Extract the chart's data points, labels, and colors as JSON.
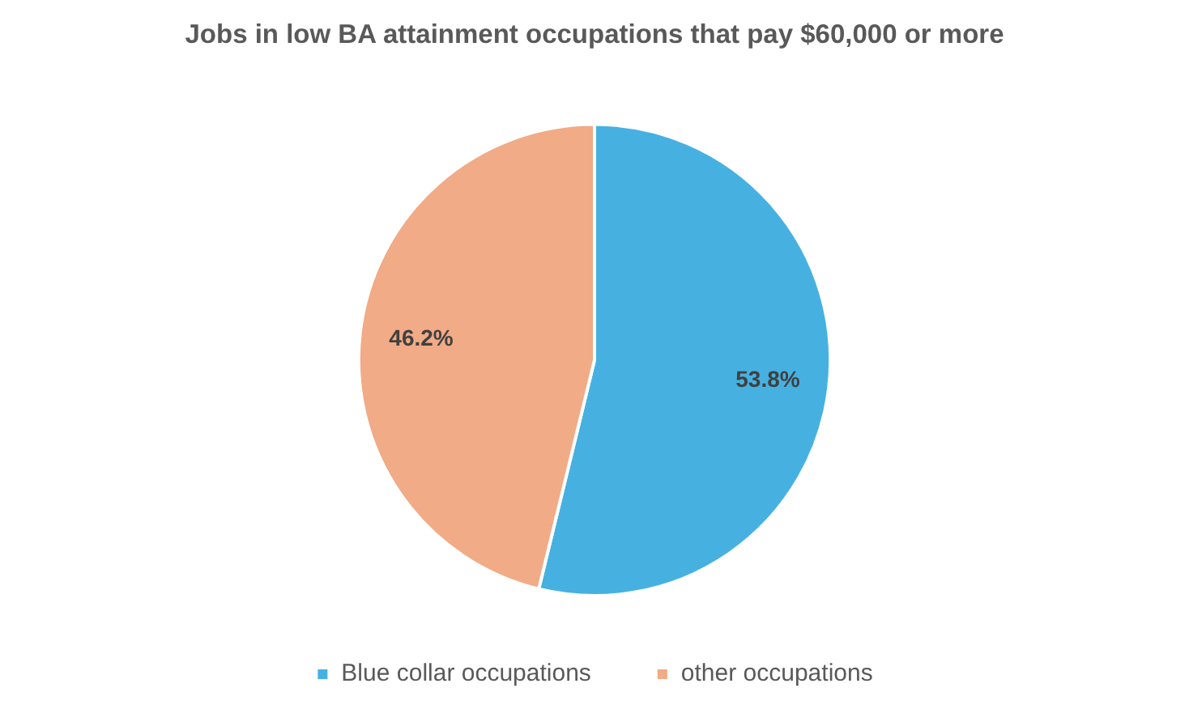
{
  "chart_data": {
    "type": "pie",
    "title": "Jobs in low BA attainment occupations that pay $60,000 or more",
    "categories": [
      "Blue collar occupations",
      "other occupations"
    ],
    "values": [
      53.8,
      46.2
    ],
    "colors": [
      "#46b1e1",
      "#f1ab86"
    ],
    "value_labels": [
      "53.8%",
      "46.2%"
    ],
    "legend": "bottom"
  }
}
